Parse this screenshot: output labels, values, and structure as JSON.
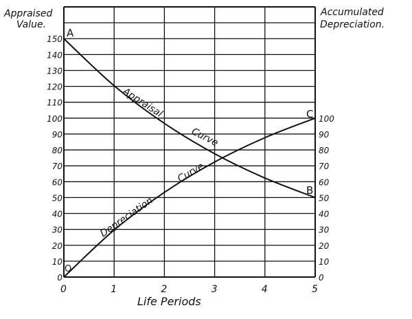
{
  "chart_data": {
    "type": "line",
    "title": "",
    "xlabel": "Life Periods",
    "ylabel_left": "Appraised Value.",
    "ylabel_right": "Accumulated Depreciation.",
    "x": [
      0,
      1,
      2,
      3,
      4,
      5
    ],
    "x_ticks": [
      "0",
      "1",
      "2",
      "3",
      "4",
      "5"
    ],
    "y_left_ticks": [
      "0",
      "10",
      "20",
      "30",
      "40",
      "50",
      "60",
      "70",
      "80",
      "90",
      "100",
      "110",
      "120",
      "130",
      "140",
      "150"
    ],
    "y_right_ticks": [
      "0",
      "10",
      "20",
      "30",
      "40",
      "50",
      "60",
      "70",
      "80",
      "90",
      "100"
    ],
    "xlim": [
      0,
      5
    ],
    "ylim": [
      0,
      170
    ],
    "grid": true,
    "colors": {
      "line": "#111111",
      "grid": "#111111",
      "background": "#ffffff"
    },
    "series": [
      {
        "name": "Appraisal Curve",
        "label_words": [
          "Appraisal",
          "Curve"
        ],
        "values": [
          150,
          120.4,
          96.7,
          77.6,
          62.3,
          50
        ]
      },
      {
        "name": "Depreciation Curve.",
        "label_words": [
          "Depreciation",
          "Curve."
        ],
        "values": [
          0,
          29.6,
          53.3,
          72.4,
          87.7,
          100
        ]
      }
    ],
    "point_labels": {
      "A": "A",
      "B": "B",
      "C": "C",
      "O": "O"
    }
  }
}
